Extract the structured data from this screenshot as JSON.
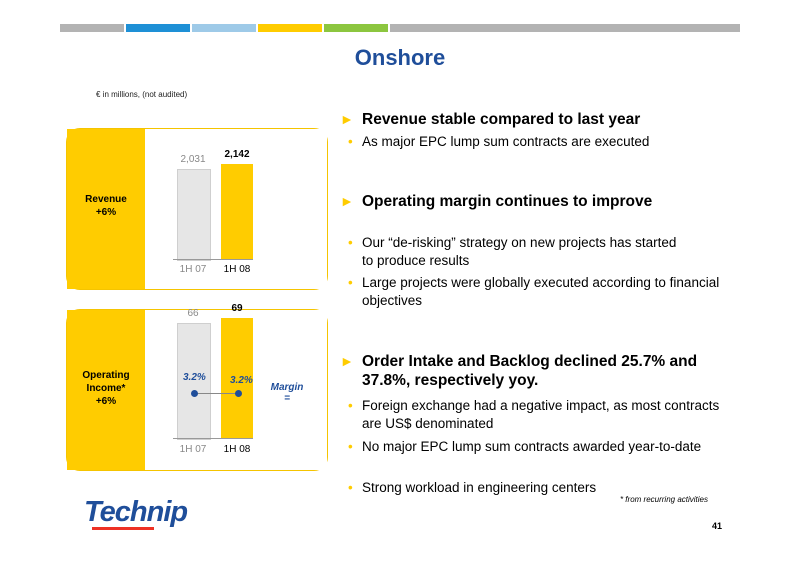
{
  "colors": {
    "title": "#1f4e9a",
    "accent": "#ffcc00",
    "bar_prev": "#e6e6e6",
    "bar_curr": "#ffcc00",
    "topbar": [
      "#b3b3b3",
      "#1e90d6",
      "#9ecae8",
      "#ffcc00",
      "#8cc63f",
      "#b3b3b3"
    ]
  },
  "title": "Onshore",
  "units_note": "€ in millions, (not audited)",
  "chart_data": [
    {
      "type": "bar",
      "title": "Revenue\n+6%",
      "categories": [
        "1H 07",
        "1H 08"
      ],
      "values": [
        2031,
        2142
      ],
      "value_labels": [
        "2,031",
        "2,142"
      ],
      "ylim": [
        0,
        2300
      ]
    },
    {
      "type": "bar",
      "title": "Operating\nIncome*\n+6%",
      "categories": [
        "1H 07",
        "1H 08"
      ],
      "values": [
        66,
        69
      ],
      "value_labels": [
        "66",
        "69"
      ],
      "ylim": [
        0,
        69
      ],
      "margin": {
        "label": "Margin\n=",
        "values": [
          "3.2%",
          "3.2%"
        ]
      }
    }
  ],
  "panels": {
    "revenue": {
      "label_line1": "Revenue",
      "label_line2": "+6%"
    },
    "operating": {
      "label_line1": "Operating",
      "label_line2": "Income*",
      "label_line3": "+6%",
      "margin_line1": "Margin",
      "margin_line2": "="
    }
  },
  "sections": [
    {
      "heading": "Revenue stable compared to last year",
      "bullets": [
        "As major EPC lump sum contracts are executed"
      ]
    },
    {
      "heading": "Operating margin continues to improve",
      "bullets": [
        "Our “de-risking” strategy on new projects has started\nto produce results",
        "Large projects were globally executed according to financial objectives"
      ]
    },
    {
      "heading": "Order Intake and Backlog declined 25.7% and 37.8%, respectively yoy.",
      "bullets": [
        "Foreign exchange had a negative impact, as most contracts are US$ denominated",
        "No major EPC lump sum contracts awarded year-to-date",
        "Strong workload in engineering centers"
      ]
    }
  ],
  "footnote": "* from recurring activities",
  "page_number": "41",
  "logo_text": "Technip"
}
